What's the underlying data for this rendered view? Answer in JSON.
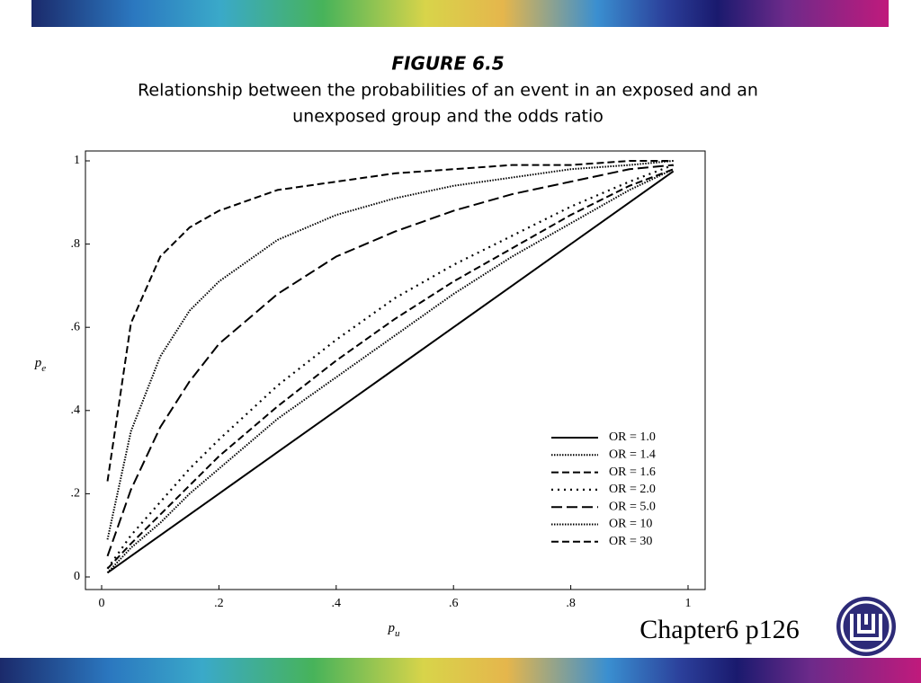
{
  "chart_data": {
    "type": "line",
    "title": "FIGURE 6.5",
    "subtitle": [
      "Relationship between the probabilities of an event in an exposed and an",
      "unexposed group and the odds ratio"
    ],
    "x_label": {
      "symbol": "p",
      "subscript": "u"
    },
    "y_label": {
      "symbol": "p",
      "subscript": "e"
    },
    "x": [
      0.01,
      0.05,
      0.1,
      0.15,
      0.2,
      0.3,
      0.4,
      0.5,
      0.6,
      0.7,
      0.8,
      0.9,
      0.975
    ],
    "series": [
      {
        "name": "OR = 1.0",
        "color": "#000000",
        "dash": "solid",
        "values": [
          0.01,
          0.05,
          0.1,
          0.15,
          0.2,
          0.3,
          0.4,
          0.5,
          0.6,
          0.7,
          0.8,
          0.9,
          0.975
        ]
      },
      {
        "name": "OR = 1.4",
        "color": "#000000",
        "dash": "fine-dotted",
        "values": [
          0.01,
          0.07,
          0.13,
          0.2,
          0.26,
          0.38,
          0.48,
          0.58,
          0.68,
          0.77,
          0.85,
          0.93,
          0.98
        ]
      },
      {
        "name": "OR = 1.6",
        "color": "#000000",
        "dash": "dashed",
        "values": [
          0.02,
          0.08,
          0.15,
          0.22,
          0.29,
          0.41,
          0.52,
          0.62,
          0.71,
          0.79,
          0.87,
          0.94,
          0.98
        ]
      },
      {
        "name": "OR = 2.0",
        "color": "#000000",
        "dash": "dotted",
        "values": [
          0.02,
          0.1,
          0.18,
          0.26,
          0.33,
          0.46,
          0.57,
          0.67,
          0.75,
          0.82,
          0.89,
          0.95,
          0.99
        ]
      },
      {
        "name": "OR = 5.0",
        "color": "#000000",
        "dash": "long-dashed",
        "values": [
          0.05,
          0.21,
          0.36,
          0.47,
          0.56,
          0.68,
          0.77,
          0.83,
          0.88,
          0.92,
          0.95,
          0.98,
          0.99
        ]
      },
      {
        "name": "OR = 10",
        "color": "#000000",
        "dash": "fine-dotted",
        "values": [
          0.09,
          0.35,
          0.53,
          0.64,
          0.71,
          0.81,
          0.87,
          0.91,
          0.94,
          0.96,
          0.98,
          0.99,
          1.0
        ]
      },
      {
        "name": "OR = 30",
        "color": "#000000",
        "dash": "dashed",
        "values": [
          0.23,
          0.61,
          0.77,
          0.84,
          0.88,
          0.93,
          0.95,
          0.97,
          0.98,
          0.99,
          0.99,
          1.0,
          1.0
        ]
      }
    ],
    "xlim": [
      0,
      1
    ],
    "ylim": [
      0,
      1
    ],
    "xticks": [
      0,
      {
        "value": 0.2,
        "label": ".2"
      },
      {
        "value": 0.4,
        "label": ".4"
      },
      {
        "value": 0.6,
        "label": ".6"
      },
      {
        "value": 0.8,
        "label": ".8"
      },
      1
    ],
    "yticks": [
      0,
      {
        "value": 0.2,
        "label": ".2"
      },
      {
        "value": 0.4,
        "label": ".4"
      },
      {
        "value": 0.6,
        "label": ".6"
      },
      {
        "value": 0.8,
        "label": ".8"
      },
      1
    ],
    "legend": "lower-right"
  },
  "slide": {
    "caption": "Chapter6 p126"
  }
}
